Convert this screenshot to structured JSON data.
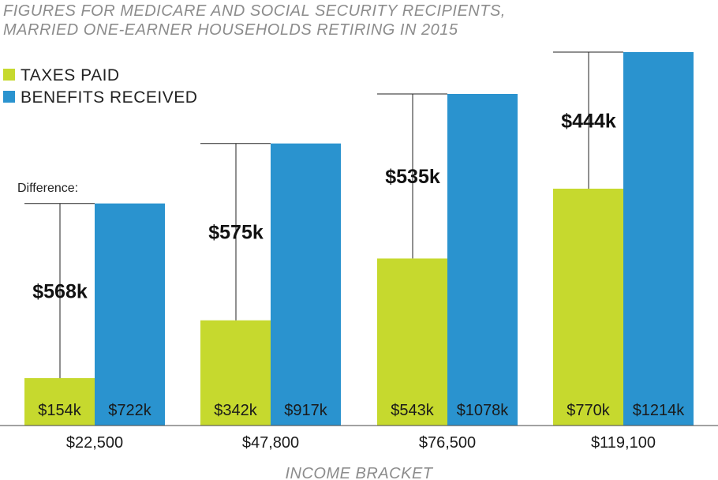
{
  "chart_data": {
    "type": "bar",
    "title_lines": [
      "FIGURES FOR MEDICARE AND SOCIAL SECURITY RECIPIENTS,",
      "MARRIED ONE-EARNER HOUSEHOLDS RETIRING IN 2015"
    ],
    "xlabel": "INCOME BRACKET",
    "ylabel": "",
    "categories": [
      "$22,500",
      "$47,800",
      "$76,500",
      "$119,100"
    ],
    "series": [
      {
        "name": "TAXES PAID",
        "color": "#c6d92e",
        "values": [
          154,
          342,
          543,
          770
        ],
        "value_labels": [
          "$154k",
          "$342k",
          "$543k",
          "$770k"
        ]
      },
      {
        "name": "BENEFITS RECEIVED",
        "color": "#2a93cf",
        "values": [
          722,
          917,
          1078,
          1214
        ],
        "value_labels": [
          "$722k",
          "$917k",
          "$1078k",
          "$1214k"
        ]
      }
    ],
    "difference_caption": "Difference:",
    "differences": [
      "$568k",
      "$575k",
      "$535k",
      "$444k"
    ],
    "legend_position": "top-left",
    "grid": false,
    "ylim": [
      0,
      1250
    ]
  }
}
